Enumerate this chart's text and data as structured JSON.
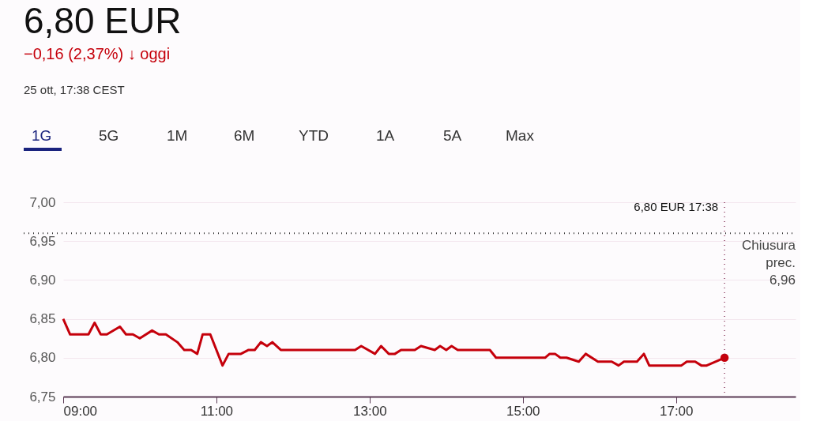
{
  "chart_data": {
    "type": "line",
    "title": "6,80 EUR",
    "subtitle": "−0,16 (2,37%) ↓ oggi",
    "annotations": [
      "25 ott, 17:38 CEST",
      "1G",
      "5G",
      "1M",
      "6M",
      "YTD",
      "1A",
      "5A",
      "Max",
      "6,80 EUR  17:38"
    ],
    "x": [
      9.0,
      9.09,
      9.33,
      9.41,
      9.49,
      9.57,
      9.74,
      9.82,
      9.91,
      10.0,
      10.16,
      10.25,
      10.34,
      10.49,
      10.58,
      10.67,
      10.75,
      10.82,
      10.92,
      11.08,
      11.16,
      11.32,
      11.42,
      11.5,
      11.58,
      11.66,
      11.73,
      11.84,
      12.81,
      12.89,
      13.07,
      13.15,
      13.25,
      13.33,
      13.41,
      13.59,
      13.67,
      13.85,
      13.92,
      14.0,
      14.07,
      14.15,
      14.57,
      14.65,
      15.29,
      15.35,
      15.42,
      15.49,
      15.57,
      15.73,
      15.82,
      15.98,
      16.16,
      16.25,
      16.32,
      16.49,
      16.58,
      16.65,
      17.07,
      17.14,
      17.25,
      17.33,
      17.4,
      17.633
    ],
    "series": [
      {
        "color": "#c5000b",
        "values": [
          6.85,
          6.83,
          6.83,
          6.845,
          6.83,
          6.83,
          6.84,
          6.83,
          6.83,
          6.825,
          6.835,
          6.83,
          6.83,
          6.82,
          6.81,
          6.81,
          6.805,
          6.83,
          6.83,
          6.79,
          6.805,
          6.805,
          6.81,
          6.81,
          6.82,
          6.815,
          6.82,
          6.81,
          6.81,
          6.815,
          6.805,
          6.815,
          6.805,
          6.805,
          6.81,
          6.81,
          6.815,
          6.81,
          6.815,
          6.81,
          6.815,
          6.81,
          6.81,
          6.8,
          6.8,
          6.805,
          6.805,
          6.8,
          6.8,
          6.795,
          6.805,
          6.795,
          6.795,
          6.79,
          6.795,
          6.795,
          6.805,
          6.79,
          6.79,
          6.795,
          6.795,
          6.79,
          6.79,
          6.8
        ]
      },
      {
        "type": "scatter",
        "color": "#c5000b",
        "marker": "circle",
        "x": [
          17.633
        ],
        "values": [
          6.8
        ]
      }
    ],
    "xlim": [
      9,
      18.56
    ],
    "xticks": [
      {
        "value": 9,
        "label": "09:00"
      },
      {
        "value": 11,
        "label": "11:00"
      },
      {
        "value": 13,
        "label": "13:00"
      },
      {
        "value": 15,
        "label": "15:00"
      },
      {
        "value": 17,
        "label": "17:00"
      }
    ],
    "ylim": [
      6.75,
      7.0
    ],
    "yticks": [
      {
        "value": 6.75,
        "label": "6,75"
      },
      {
        "value": 6.8,
        "label": "6,80"
      },
      {
        "value": 6.85,
        "label": "6,85"
      },
      {
        "value": 6.9,
        "label": "6,90"
      },
      {
        "value": 6.95,
        "label": "6,95"
      },
      {
        "value": 7.0,
        "label": "7,00"
      }
    ],
    "ref_lines": [
      {
        "axis": "y",
        "value": 6.96,
        "label": "Chiusura prec. 6,96",
        "line_style": "dotted",
        "color": "#333333"
      },
      {
        "axis": "x",
        "value": 17.633,
        "line_style": "dotted",
        "color": "#7a2048"
      }
    ],
    "grid": "y",
    "marker": "none",
    "line_style": "solid"
  }
}
